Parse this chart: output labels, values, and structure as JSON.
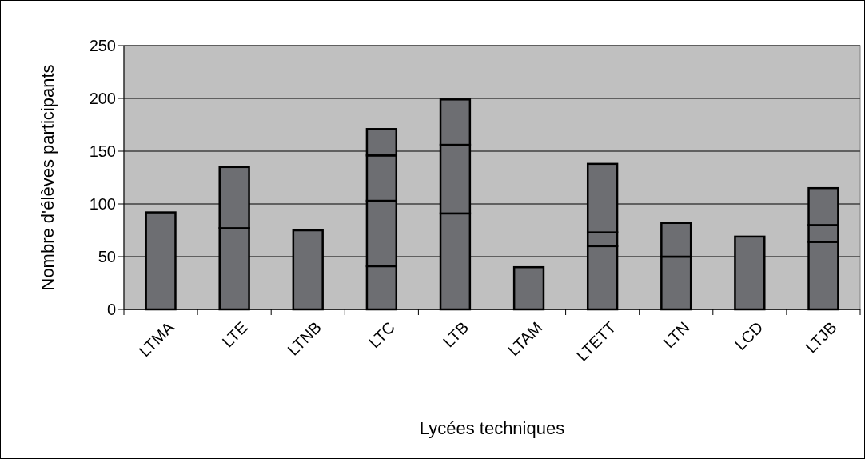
{
  "chart_data": {
    "type": "bar",
    "stacked": true,
    "xlabel": "Lycées techniques",
    "ylabel": "Nombre d'élèves participants",
    "categories": [
      "LTMA",
      "LTE",
      "LTNB",
      "LTC",
      "LTB",
      "LTAM",
      "LTETT",
      "LTN",
      "LCD",
      "LTJB"
    ],
    "series": [
      {
        "color": "#6d6e72",
        "values": [
          92,
          77,
          75,
          41,
          91,
          40,
          60,
          50,
          69,
          64
        ]
      },
      {
        "color": "#6d6e72",
        "values": [
          null,
          58,
          null,
          62,
          65,
          null,
          13,
          32,
          null,
          16
        ]
      },
      {
        "color": "#6d6e72",
        "values": [
          null,
          null,
          null,
          43,
          43,
          null,
          65,
          null,
          null,
          35
        ]
      },
      {
        "color": "#6d6e72",
        "values": [
          null,
          null,
          null,
          25,
          null,
          null,
          null,
          null,
          null,
          null
        ]
      }
    ],
    "ylim": [
      0,
      250
    ],
    "yticks": [
      0,
      50,
      100,
      150,
      200,
      250
    ],
    "grid": "y"
  }
}
